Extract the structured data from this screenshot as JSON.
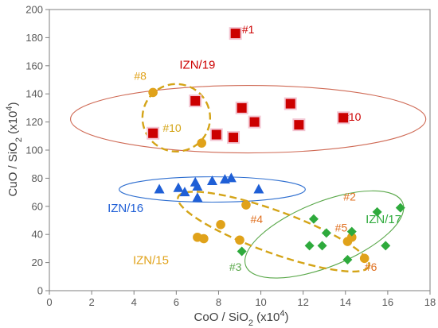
{
  "chart_data": {
    "type": "scatter",
    "xlim": [
      0,
      18
    ],
    "ylim": [
      0,
      200
    ],
    "xticks": [
      0,
      2,
      4,
      6,
      8,
      10,
      12,
      14,
      16,
      18
    ],
    "yticks": [
      0,
      20,
      40,
      60,
      80,
      100,
      120,
      140,
      160,
      180,
      200
    ],
    "grid": false,
    "legend": "none",
    "xlabel": {
      "base": "CoO / SiO",
      "sub": "2",
      "unit_pre": " (x10",
      "sup": "4",
      "unit_post": ")"
    },
    "ylabel": {
      "base": "CuO / SiO",
      "sub": "2",
      "unit_pre": " (x10",
      "sup": "4",
      "unit_post": ")"
    },
    "series": [
      {
        "name": "IZN/19",
        "marker": "square",
        "color": "#cc0000",
        "points": [
          [
            8.8,
            183
          ],
          [
            6.9,
            135
          ],
          [
            9.1,
            130
          ],
          [
            11.4,
            133
          ],
          [
            4.9,
            112
          ],
          [
            7.9,
            111
          ],
          [
            8.7,
            109
          ],
          [
            9.7,
            120
          ],
          [
            11.8,
            118
          ],
          [
            13.9,
            123
          ]
        ]
      },
      {
        "name": "IZN/16",
        "marker": "triangle",
        "color": "#1f5fd6",
        "points": [
          [
            5.2,
            72
          ],
          [
            6.1,
            73
          ],
          [
            6.4,
            70
          ],
          [
            6.9,
            77
          ],
          [
            7.0,
            74
          ],
          [
            7.0,
            66
          ],
          [
            7.7,
            78
          ],
          [
            8.3,
            79
          ],
          [
            8.6,
            80
          ],
          [
            9.9,
            72
          ]
        ]
      },
      {
        "name": "IZN/15",
        "marker": "circle",
        "color": "#e0a21a",
        "points": [
          [
            4.9,
            141
          ],
          [
            7.2,
            105
          ],
          [
            9.3,
            61
          ],
          [
            8.1,
            47
          ],
          [
            7.0,
            38
          ],
          [
            7.3,
            37
          ],
          [
            9.0,
            36
          ],
          [
            14.1,
            35
          ],
          [
            14.3,
            38
          ],
          [
            14.9,
            23
          ]
        ]
      },
      {
        "name": "IZN/17",
        "marker": "diamond",
        "color": "#2eaa3c",
        "points": [
          [
            9.1,
            28
          ],
          [
            12.5,
            51
          ],
          [
            12.3,
            32
          ],
          [
            12.9,
            32
          ],
          [
            13.1,
            41
          ],
          [
            14.1,
            22
          ],
          [
            14.3,
            42
          ],
          [
            15.5,
            56
          ],
          [
            15.9,
            32
          ],
          [
            16.6,
            59
          ]
        ]
      }
    ],
    "ellipses": [
      {
        "group": "IZN/19",
        "color": "#cf6a55",
        "dashed": false,
        "cx": 9.4,
        "cy": 122,
        "rx": 8.4,
        "ry": 24,
        "angle": 0
      },
      {
        "group": "IZN/16",
        "color": "#2f6fd0",
        "dashed": false,
        "cx": 7.7,
        "cy": 72,
        "rx": 4.4,
        "ry": 9,
        "angle": 0
      },
      {
        "group": "IZN/17",
        "color": "#5aa84a",
        "dashed": false,
        "cx": 13.0,
        "cy": 40,
        "rx": 4.0,
        "ry": 23,
        "angle_deg_screen": -22
      },
      {
        "group": "IZN/15",
        "color": "#d4a417",
        "dashed": true,
        "cx": 10.6,
        "cy": 42,
        "rx": 4.8,
        "ry": 15,
        "angle_deg_screen": 20
      },
      {
        "group": "IZN/15",
        "color": "#d4a417",
        "dashed": true,
        "cx": 6.0,
        "cy": 123,
        "rx": 1.6,
        "ry": 24,
        "angle_deg_screen": -28
      }
    ],
    "group_labels": [
      {
        "text": "IZN/19",
        "color": "#cc0000",
        "x": 7.0,
        "y": 158
      },
      {
        "text": "IZN/16",
        "color": "#1f5fd6",
        "x": 3.6,
        "y": 56
      },
      {
        "text": "IZN/15",
        "color": "#e0a21a",
        "x": 4.8,
        "y": 19
      },
      {
        "text": "IZN/17",
        "color": "#2eaa3c",
        "x": 15.8,
        "y": 48
      }
    ],
    "annotations": [
      {
        "text": "#1",
        "color": "#cc0000",
        "x": 9.4,
        "y": 183
      },
      {
        "text": "#8",
        "color": "#e0a21a",
        "x": 4.3,
        "y": 150
      },
      {
        "text": "#10",
        "color": "#d4a417",
        "x": 5.8,
        "y": 113
      },
      {
        "text": "#10",
        "color": "#cc0000",
        "x": 14.3,
        "y": 121
      },
      {
        "text": "#2",
        "color": "#e07020",
        "x": 14.2,
        "y": 64
      },
      {
        "text": "#4",
        "color": "#e07020",
        "x": 9.8,
        "y": 48
      },
      {
        "text": "#3",
        "color": "#5aa84a",
        "x": 8.8,
        "y": 14
      },
      {
        "text": "#6",
        "color": "#e07020",
        "x": 15.2,
        "y": 14
      },
      {
        "text": "#5",
        "color": "#e07020",
        "x": 13.8,
        "y": 42
      }
    ]
  }
}
